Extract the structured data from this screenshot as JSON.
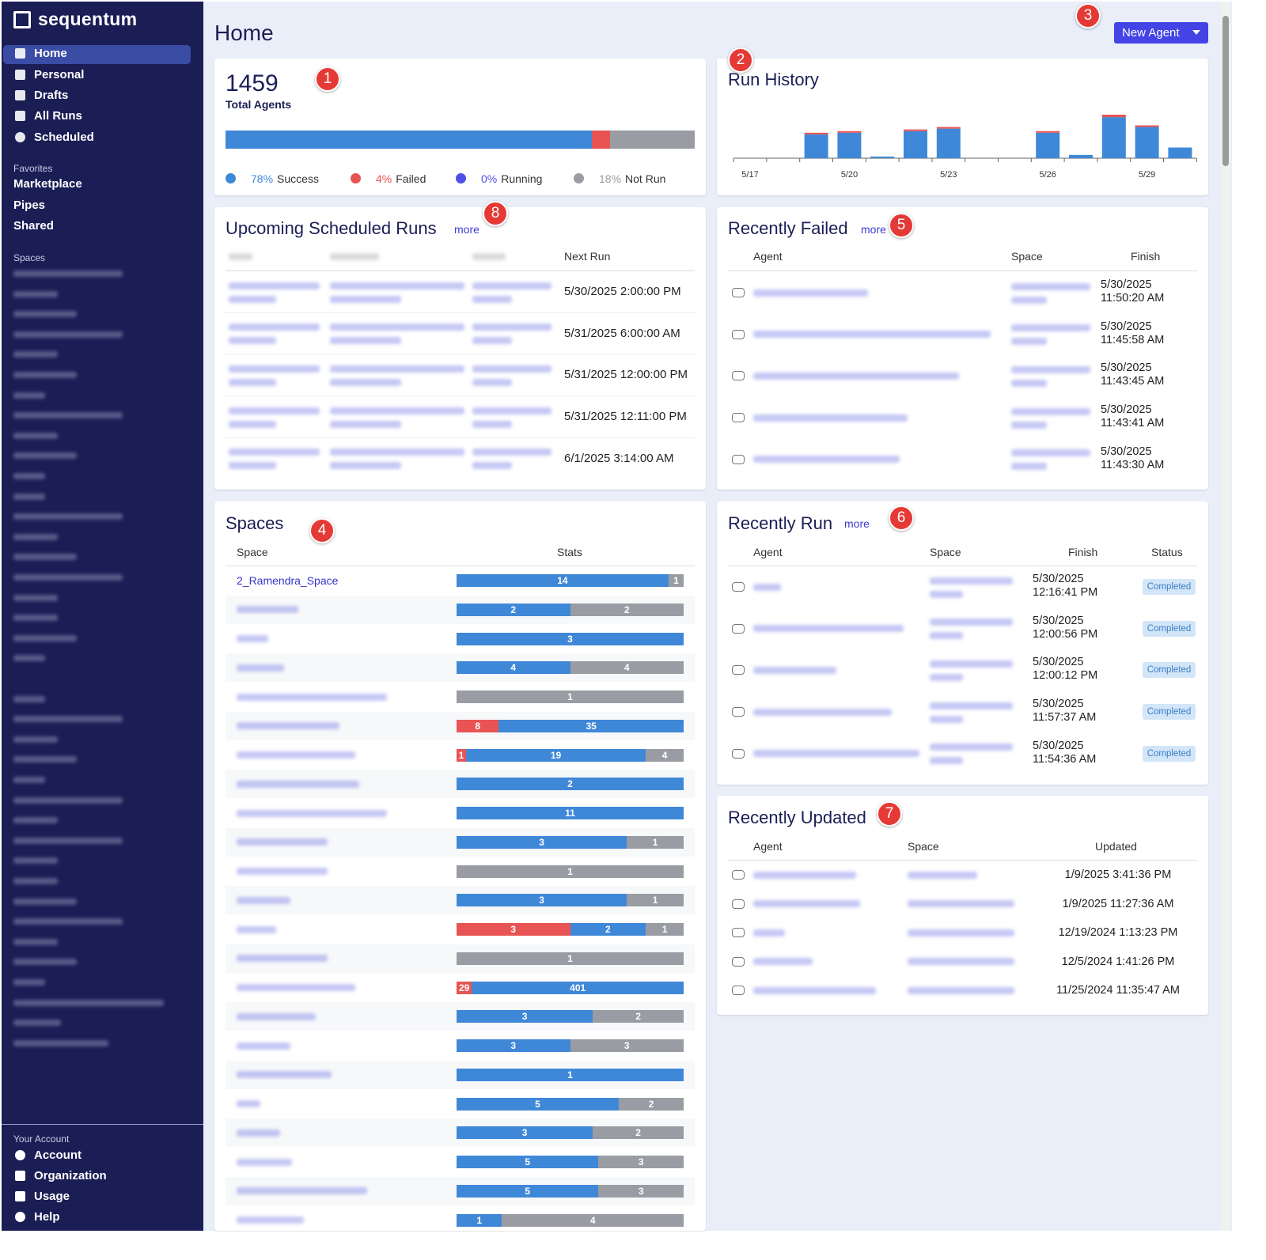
{
  "sidebar": {
    "brand": "sequentum",
    "nav": [
      "Home",
      "Personal",
      "Drafts",
      "All Runs",
      "Scheduled"
    ],
    "favorites_title": "Favorites",
    "favorites": [
      "Marketplace",
      "Pipes",
      "Shared"
    ],
    "spaces_title": "Spaces",
    "account_title": "Your Account",
    "account": [
      "Account",
      "Organization",
      "Usage",
      "Help"
    ]
  },
  "header": {
    "title": "Home",
    "button": "New Agent"
  },
  "markers": [
    1,
    2,
    3,
    4,
    5,
    6,
    7,
    8
  ],
  "total_agents": {
    "count": 1459,
    "label": "Total Agents",
    "segments": [
      {
        "name": "Success",
        "value": 78,
        "label": "78%",
        "color": "#3f88d8"
      },
      {
        "name": "Failed",
        "value": 4,
        "label": "4%",
        "color": "#e85454"
      },
      {
        "name": "Running",
        "value": 0,
        "label": "0%",
        "color": "#4f4fe8"
      },
      {
        "name": "Not Run",
        "value": 18,
        "label": "18%",
        "color": "#9a9ca3"
      }
    ]
  },
  "chart_data": {
    "type": "bar",
    "stacked": true,
    "title": "Run History",
    "categories": [
      "5/17",
      null,
      null,
      "5/20",
      null,
      null,
      "5/23",
      null,
      null,
      "5/26",
      null,
      null,
      "5/29",
      null
    ],
    "series": [
      {
        "name": "Success",
        "color": "#3f88d8",
        "values": [
          0,
          0,
          29,
          31,
          2,
          33,
          36,
          0,
          0,
          31,
          4,
          50,
          38,
          13
        ]
      },
      {
        "name": "Failed",
        "color": "#e85454",
        "values": [
          0,
          0,
          2,
          2,
          0,
          2,
          2,
          0,
          0,
          2,
          0,
          3,
          2,
          0
        ]
      }
    ]
  },
  "upcoming": {
    "title": "Upcoming Scheduled Runs",
    "more": "more",
    "next_run_header": "Next Run",
    "next_runs": [
      "5/30/2025 2:00:00 PM",
      "5/31/2025 6:00:00 AM",
      "5/31/2025 12:00:00 PM",
      "5/31/2025 12:11:00 PM",
      "6/1/2025 3:14:00 AM"
    ]
  },
  "recently_failed": {
    "title": "Recently Failed",
    "more": "more",
    "columns": [
      "Agent",
      "Space",
      "Finish"
    ],
    "finish": [
      "5/30/2025 11:50:20 AM",
      "5/30/2025 11:45:58 AM",
      "5/30/2025 11:43:45 AM",
      "5/30/2025 11:43:41 AM",
      "5/30/2025 11:43:30 AM"
    ]
  },
  "spaces": {
    "title": "Spaces",
    "columns": [
      "Space",
      "Stats"
    ],
    "colors": {
      "failed": "#e85454",
      "success": "#3f88d8",
      "not_run": "#9a9ca3"
    },
    "rows": [
      {
        "name": "2_Ramendra_Space",
        "failed": null,
        "success": 14,
        "not_run": 1
      },
      {
        "name": null,
        "failed": null,
        "success": 2,
        "not_run": 2
      },
      {
        "name": null,
        "failed": null,
        "success": 3,
        "not_run": null
      },
      {
        "name": null,
        "failed": null,
        "success": 4,
        "not_run": 4
      },
      {
        "name": null,
        "failed": null,
        "success": null,
        "not_run": 1
      },
      {
        "name": null,
        "failed": 8,
        "success": 35,
        "not_run": null
      },
      {
        "name": null,
        "failed": 1,
        "success": 19,
        "not_run": 4
      },
      {
        "name": null,
        "failed": null,
        "success": 2,
        "not_run": null
      },
      {
        "name": null,
        "failed": null,
        "success": 11,
        "not_run": null
      },
      {
        "name": null,
        "failed": null,
        "success": 3,
        "not_run": 1
      },
      {
        "name": null,
        "failed": null,
        "success": null,
        "not_run": 1
      },
      {
        "name": null,
        "failed": null,
        "success": 3,
        "not_run": 1
      },
      {
        "name": null,
        "failed": 3,
        "success": 2,
        "not_run": 1
      },
      {
        "name": null,
        "failed": null,
        "success": null,
        "not_run": 1
      },
      {
        "name": null,
        "failed": 29,
        "success": 401,
        "not_run": null
      },
      {
        "name": null,
        "failed": null,
        "success": 3,
        "not_run": 2
      },
      {
        "name": null,
        "failed": null,
        "success": 3,
        "not_run": 3
      },
      {
        "name": null,
        "failed": null,
        "success": 1,
        "not_run": null
      },
      {
        "name": null,
        "failed": null,
        "success": 5,
        "not_run": 2
      },
      {
        "name": null,
        "failed": null,
        "success": 3,
        "not_run": 2
      },
      {
        "name": null,
        "failed": null,
        "success": 5,
        "not_run": 3
      },
      {
        "name": null,
        "failed": null,
        "success": 5,
        "not_run": 3
      },
      {
        "name": null,
        "failed": null,
        "success": 1,
        "not_run": 4
      }
    ]
  },
  "recently_run": {
    "title": "Recently Run",
    "more": "more",
    "columns": [
      "Agent",
      "Space",
      "Finish",
      "Status"
    ],
    "rows": [
      {
        "finish": "5/30/2025 12:16:41 PM",
        "status": "Completed"
      },
      {
        "finish": "5/30/2025 12:00:56 PM",
        "status": "Completed"
      },
      {
        "finish": "5/30/2025 12:00:12 PM",
        "status": "Completed"
      },
      {
        "finish": "5/30/2025 11:57:37 AM",
        "status": "Completed"
      },
      {
        "finish": "5/30/2025 11:54:36 AM",
        "status": "Completed"
      }
    ]
  },
  "recently_updated": {
    "title": "Recently Updated",
    "columns": [
      "Agent",
      "Space",
      "Updated"
    ],
    "updated": [
      "1/9/2025 3:41:36 PM",
      "1/9/2025 11:27:36 AM",
      "12/19/2024 1:13:23 PM",
      "12/5/2024 1:41:26 PM",
      "11/25/2024 11:35:47 AM"
    ]
  }
}
